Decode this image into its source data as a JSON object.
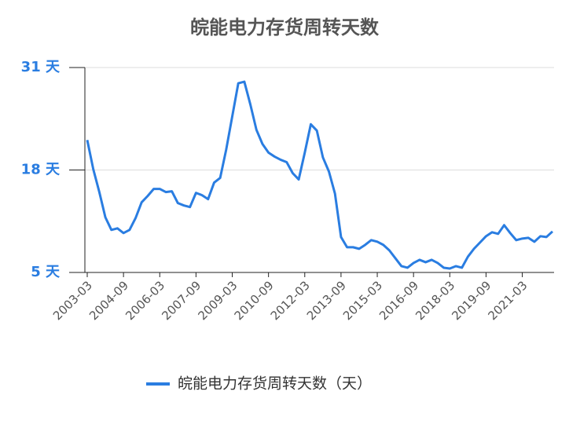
{
  "chart_data": {
    "type": "line",
    "title": "皖能电力存货周转天数",
    "categories": [
      "2003-03",
      null,
      null,
      null,
      null,
      null,
      "2004-09",
      null,
      null,
      null,
      null,
      null,
      "2006-03",
      null,
      null,
      null,
      null,
      null,
      "2007-09",
      null,
      null,
      null,
      null,
      null,
      "2009-03",
      null,
      null,
      null,
      null,
      null,
      "2010-09",
      null,
      null,
      null,
      null,
      null,
      "2012-03",
      null,
      null,
      null,
      null,
      null,
      "2013-09",
      null,
      null,
      null,
      null,
      null,
      "2015-03",
      null,
      null,
      null,
      null,
      null,
      "2016-09",
      null,
      null,
      null,
      null,
      null,
      "2018-03",
      null,
      null,
      null,
      null,
      null,
      "2019-09",
      null,
      null,
      null,
      null,
      null,
      "2021-03",
      null,
      null,
      null,
      null,
      null
    ],
    "series": [
      {
        "name": "皖能电力存货周转天数（天）",
        "color": "#2a7de1",
        "values": [
          21.8,
          18.1,
          15.2,
          12.0,
          10.4,
          10.6,
          10.0,
          10.4,
          11.9,
          13.9,
          14.7,
          15.6,
          15.6,
          15.2,
          15.3,
          13.8,
          13.5,
          13.3,
          15.1,
          14.8,
          14.3,
          16.4,
          17.0,
          20.6,
          24.8,
          29.0,
          29.2,
          26.3,
          23.1,
          21.3,
          20.2,
          19.7,
          19.3,
          19.0,
          17.6,
          16.8,
          20.2,
          23.8,
          23.0,
          19.6,
          17.8,
          15.0,
          9.5,
          8.2,
          8.2,
          8.0,
          8.5,
          9.1,
          8.9,
          8.5,
          7.8,
          6.8,
          5.8,
          5.6,
          6.2,
          6.6,
          6.3,
          6.6,
          6.2,
          5.6,
          5.5,
          5.8,
          5.6,
          7.0,
          8.0,
          8.8,
          9.6,
          10.1,
          9.9,
          11.0,
          10.0,
          9.1,
          9.3,
          9.4,
          8.9,
          9.6,
          9.5,
          10.2
        ]
      }
    ],
    "ylim": [
      5,
      31
    ],
    "yticks": [
      {
        "value": 5,
        "label": "5 天"
      },
      {
        "value": 18,
        "label": "18 天"
      },
      {
        "value": 31,
        "label": "31 天"
      }
    ],
    "grid": true,
    "legend": "bottom"
  }
}
